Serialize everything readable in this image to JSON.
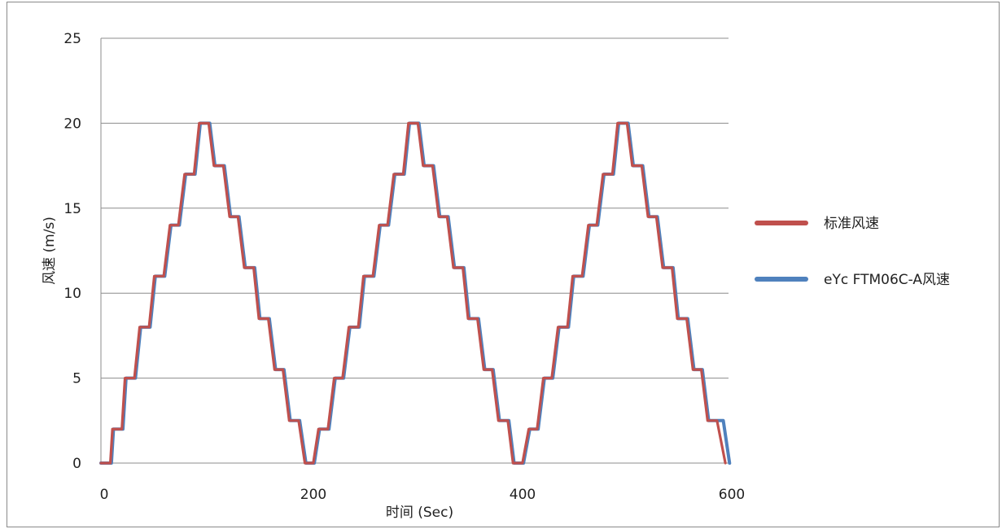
{
  "chart_data": {
    "type": "line",
    "title": "",
    "xlabel": "时间 (Sec)",
    "ylabel": "风速 (m/s)",
    "xlim": [
      0,
      600
    ],
    "ylim": [
      0,
      25
    ],
    "xticks": [
      0,
      200,
      400,
      600
    ],
    "yticks": [
      0,
      5,
      10,
      15,
      20,
      25
    ],
    "grid": "horizontal",
    "legend": "right",
    "step_profile": {
      "levels": [
        0,
        2,
        5,
        8,
        11,
        14,
        17,
        20,
        17.5,
        14.5,
        11.5,
        8.5,
        5.5,
        2.5
      ],
      "step_duration_sec": 14.3,
      "cycles": 3
    },
    "series": [
      {
        "name": "标准风速",
        "color": "#c0504d",
        "x": [
          0,
          9,
          11,
          20,
          23,
          32,
          37,
          46,
          51,
          60,
          66,
          74,
          80,
          89,
          94,
          103,
          108,
          117,
          123,
          131,
          137,
          146,
          151,
          160,
          166,
          174,
          180,
          189,
          195,
          203,
          208,
          217,
          223,
          231,
          237,
          246,
          251,
          260,
          266,
          274,
          280,
          289,
          294,
          303,
          308,
          317,
          323,
          331,
          337,
          346,
          351,
          360,
          366,
          374,
          380,
          389,
          394,
          403,
          409,
          417,
          423,
          431,
          437,
          446,
          451,
          460,
          466,
          474,
          480,
          489,
          494,
          503,
          508,
          517,
          523,
          531,
          537,
          546,
          551,
          560,
          566,
          574,
          580,
          589,
          597
        ],
        "y": [
          0,
          0,
          2,
          2,
          5,
          5,
          8,
          8,
          11,
          11,
          14,
          14,
          17,
          17,
          20,
          20,
          17.5,
          17.5,
          14.5,
          14.5,
          11.5,
          11.5,
          8.5,
          8.5,
          5.5,
          5.5,
          2.5,
          2.5,
          0,
          0,
          2,
          2,
          5,
          5,
          8,
          8,
          11,
          11,
          14,
          14,
          17,
          17,
          20,
          20,
          17.5,
          17.5,
          14.5,
          14.5,
          11.5,
          11.5,
          8.5,
          8.5,
          5.5,
          5.5,
          2.5,
          2.5,
          0,
          0,
          2,
          2,
          5,
          5,
          8,
          8,
          11,
          11,
          14,
          14,
          17,
          17,
          20,
          20,
          17.5,
          17.5,
          14.5,
          14.5,
          11.5,
          11.5,
          8.5,
          8.5,
          5.5,
          5.5,
          2.5,
          2.5,
          0
        ]
      },
      {
        "name": "eYc FTM06C-A风速",
        "color": "#4f81bd",
        "x": [
          0,
          10,
          12,
          21,
          24,
          33,
          38,
          47,
          52,
          61,
          67,
          75,
          81,
          90,
          95,
          104,
          109,
          118,
          124,
          132,
          138,
          147,
          152,
          161,
          167,
          175,
          181,
          190,
          196,
          204,
          209,
          218,
          224,
          232,
          238,
          247,
          252,
          261,
          267,
          275,
          281,
          290,
          295,
          304,
          309,
          318,
          324,
          332,
          338,
          347,
          352,
          361,
          367,
          375,
          381,
          390,
          395,
          404,
          410,
          418,
          424,
          432,
          438,
          447,
          452,
          461,
          467,
          475,
          481,
          490,
          495,
          504,
          509,
          518,
          524,
          532,
          538,
          547,
          552,
          561,
          567,
          575,
          581,
          595,
          601
        ],
        "y": [
          0,
          0,
          2,
          2,
          5,
          5,
          8,
          8,
          11,
          11,
          14,
          14,
          17,
          17,
          20,
          20,
          17.5,
          17.5,
          14.5,
          14.5,
          11.5,
          11.5,
          8.5,
          8.5,
          5.5,
          5.5,
          2.5,
          2.5,
          0,
          0,
          2,
          2,
          5,
          5,
          8,
          8,
          11,
          11,
          14,
          14,
          17,
          17,
          20,
          20,
          17.5,
          17.5,
          14.5,
          14.5,
          11.5,
          11.5,
          8.5,
          8.5,
          5.5,
          5.5,
          2.5,
          2.5,
          0,
          0,
          2,
          2,
          5,
          5,
          8,
          8,
          11,
          11,
          14,
          14,
          17,
          17,
          20,
          20,
          17.5,
          17.5,
          14.5,
          14.5,
          11.5,
          11.5,
          8.5,
          8.5,
          5.5,
          5.5,
          2.5,
          2.5,
          0
        ]
      }
    ]
  }
}
